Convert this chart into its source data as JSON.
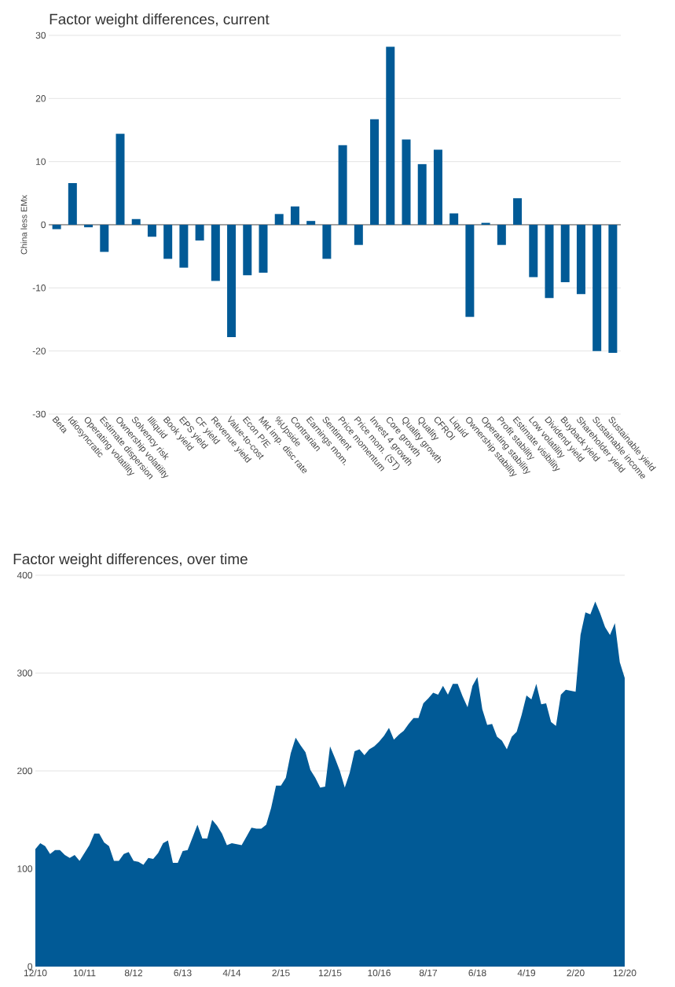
{
  "chart_data": [
    {
      "type": "bar",
      "title": "Factor weight differences, current",
      "ylabel": "China less EMx",
      "categories": [
        "Beta",
        "Idiosyncratic",
        "Operating volatility",
        "Estimate dispersion",
        "Ownership volatility",
        "Solvency risk",
        "Illiquid",
        "Book yield",
        "EPS yield",
        "CF yield",
        "Revenue yield",
        "Value-to-cost",
        "Econ P/E",
        "Mkt imp. disc rate",
        "%Upside",
        "Contrarian",
        "Earnings mom.",
        "Sentiment",
        "Price momentum",
        "Price mom. (ST)",
        "Invest 4 growth",
        "Core growth",
        "Quality growth",
        "Quality",
        "CFROI",
        "Liquid",
        "Ownership stability",
        "Operating stability",
        "Profit stability",
        "Estimate visibility",
        "Low volatility",
        "Dividend yield",
        "Buyback yield",
        "Shareholder yield",
        "Sustainable income",
        "Sustainable yield"
      ],
      "values": [
        -0.7,
        6.6,
        -0.4,
        -4.3,
        14.4,
        0.9,
        -1.9,
        -5.4,
        -6.8,
        -2.5,
        -8.9,
        -17.8,
        -8.0,
        -7.6,
        1.7,
        2.9,
        0.6,
        -5.4,
        12.6,
        -3.2,
        16.7,
        28.2,
        13.5,
        9.6,
        11.9,
        1.8,
        -14.6,
        0.3,
        -3.2,
        4.2,
        -8.3,
        -11.6,
        -9.1,
        -11.0,
        -20.0,
        -20.3
      ],
      "color": "#015a96",
      "ylim": [
        -30,
        30
      ],
      "yticks": [
        -30,
        -20,
        -10,
        0,
        10,
        20,
        30
      ],
      "grid": "y",
      "ref_lines": [
        {
          "axis": "y",
          "value": 0,
          "color": "#555555"
        }
      ]
    },
    {
      "type": "area",
      "title": "Factor weight differences, over time",
      "x": [
        "2010-12",
        "2011-01",
        "2011-02",
        "2011-03",
        "2011-04",
        "2011-05",
        "2011-06",
        "2011-07",
        "2011-08",
        "2011-09",
        "2011-10",
        "2011-11",
        "2011-12",
        "2012-01",
        "2012-02",
        "2012-03",
        "2012-04",
        "2012-05",
        "2012-06",
        "2012-07",
        "2012-08",
        "2012-09",
        "2012-10",
        "2012-11",
        "2012-12",
        "2013-01",
        "2013-02",
        "2013-03",
        "2013-04",
        "2013-05",
        "2013-06",
        "2013-07",
        "2013-08",
        "2013-09",
        "2013-10",
        "2013-11",
        "2013-12",
        "2014-01",
        "2014-02",
        "2014-03",
        "2014-04",
        "2014-05",
        "2014-06",
        "2014-07",
        "2014-08",
        "2014-09",
        "2014-10",
        "2014-11",
        "2014-12",
        "2015-01",
        "2015-02",
        "2015-03",
        "2015-04",
        "2015-05",
        "2015-06",
        "2015-07",
        "2015-08",
        "2015-09",
        "2015-10",
        "2015-11",
        "2015-12",
        "2016-01",
        "2016-02",
        "2016-03",
        "2016-04",
        "2016-05",
        "2016-06",
        "2016-07",
        "2016-08",
        "2016-09",
        "2016-10",
        "2016-11",
        "2016-12",
        "2017-01",
        "2017-02",
        "2017-03",
        "2017-04",
        "2017-05",
        "2017-06",
        "2017-07",
        "2017-08",
        "2017-09",
        "2017-10",
        "2017-11",
        "2017-12",
        "2018-01",
        "2018-02",
        "2018-03",
        "2018-04",
        "2018-05",
        "2018-06",
        "2018-07",
        "2018-08",
        "2018-09",
        "2018-10",
        "2018-11",
        "2018-12",
        "2019-01",
        "2019-02",
        "2019-03",
        "2019-04",
        "2019-05",
        "2019-06",
        "2019-07",
        "2019-08",
        "2019-09",
        "2019-10",
        "2019-11",
        "2019-12",
        "2020-01",
        "2020-02",
        "2020-03",
        "2020-04",
        "2020-05",
        "2020-06",
        "2020-07",
        "2020-08",
        "2020-09",
        "2020-10",
        "2020-11",
        "2020-12"
      ],
      "values": [
        120,
        126,
        123,
        115,
        119,
        119,
        114,
        111,
        114,
        108,
        116,
        124,
        136,
        136,
        127,
        123,
        108,
        108,
        115,
        117,
        108,
        107,
        104,
        111,
        110,
        116,
        126,
        129,
        106,
        106,
        118,
        119,
        132,
        145,
        131,
        131,
        150,
        144,
        136,
        124,
        126,
        125,
        124,
        133,
        142,
        141,
        141,
        145,
        162,
        185,
        185,
        193,
        218,
        234,
        226,
        219,
        201,
        193,
        183,
        184,
        225,
        213,
        200,
        183,
        198,
        220,
        222,
        216,
        222,
        225,
        230,
        236,
        244,
        232,
        237,
        241,
        248,
        254,
        254,
        269,
        274,
        280,
        278,
        287,
        278,
        289,
        289,
        276,
        265,
        287,
        296,
        263,
        247,
        248,
        235,
        231,
        222,
        235,
        240,
        257,
        277,
        273,
        289,
        268,
        269,
        250,
        246,
        278,
        283,
        282,
        281,
        339,
        362,
        360,
        373,
        361,
        347,
        339,
        351,
        311,
        295
      ],
      "color": "#015a96",
      "xlim": [
        "2010-12",
        "2020-12"
      ],
      "xticks": [
        {
          "value": "2010-12",
          "label": "12/10"
        },
        {
          "value": "2011-10",
          "label": "10/11"
        },
        {
          "value": "2012-08",
          "label": "8/12"
        },
        {
          "value": "2013-06",
          "label": "6/13"
        },
        {
          "value": "2014-04",
          "label": "4/14"
        },
        {
          "value": "2015-02",
          "label": "2/15"
        },
        {
          "value": "2015-12",
          "label": "12/15"
        },
        {
          "value": "2016-10",
          "label": "10/16"
        },
        {
          "value": "2017-08",
          "label": "8/17"
        },
        {
          "value": "2018-06",
          "label": "6/18"
        },
        {
          "value": "2019-04",
          "label": "4/19"
        },
        {
          "value": "2020-02",
          "label": "2/20"
        },
        {
          "value": "2020-12",
          "label": "12/20"
        }
      ],
      "ylim": [
        0,
        400
      ],
      "yticks": [
        0,
        100,
        200,
        300,
        400
      ],
      "grid": "y"
    }
  ]
}
